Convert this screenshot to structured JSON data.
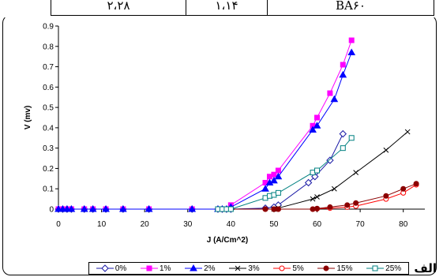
{
  "table_row": {
    "cells": [
      "۲،۲۸",
      "۱،۱۴",
      "BA۶۰"
    ]
  },
  "corner_label": "الف",
  "chart_data": {
    "type": "line",
    "title": "",
    "xlabel": "J (A/Cm^2)",
    "ylabel": "V (mv)",
    "xlim": [
      0,
      85
    ],
    "ylim": [
      0,
      0.9
    ],
    "x_ticks": [
      0,
      10,
      20,
      30,
      40,
      50,
      60,
      70,
      80
    ],
    "y_ticks": [
      0,
      0.1,
      0.2,
      0.3,
      0.4,
      0.5,
      0.6,
      0.7,
      0.8,
      0.9
    ],
    "y_tick_labels": [
      "0",
      "0.1",
      "0.2",
      "0.3",
      "0.4",
      "0.5",
      "0.6",
      "0.7",
      "0.8",
      "0.9"
    ],
    "grid": false,
    "legend_position": "bottom",
    "series": [
      {
        "name": "0%",
        "color": "#1a1aa6",
        "marker": "diamond-open",
        "x": [
          0,
          1,
          2,
          3,
          6,
          8,
          11,
          15,
          21,
          31,
          37,
          38,
          39,
          40,
          48,
          50,
          51,
          58,
          59.5,
          63,
          66
        ],
        "y": [
          0,
          0,
          0,
          0,
          0,
          0,
          0,
          0,
          0,
          0,
          0,
          0,
          0,
          0,
          0.005,
          0.01,
          0.02,
          0.13,
          0.16,
          0.24,
          0.37
        ]
      },
      {
        "name": "1%",
        "color": "#ff00ff",
        "marker": "square-filled",
        "x": [
          0,
          1,
          2,
          3,
          6,
          8,
          11,
          15,
          21,
          31,
          37,
          38,
          39,
          40,
          48,
          49,
          50,
          51,
          59,
          60,
          63,
          66,
          68
        ],
        "y": [
          0,
          0,
          0,
          0,
          0,
          0,
          0,
          0,
          0,
          0,
          0,
          0,
          0,
          0.02,
          0.13,
          0.16,
          0.17,
          0.19,
          0.41,
          0.45,
          0.57,
          0.71,
          0.83
        ]
      },
      {
        "name": "2%",
        "color": "#0000ff",
        "marker": "triangle-filled",
        "x": [
          0,
          1,
          2,
          3,
          6,
          8,
          11,
          15,
          21,
          31,
          37,
          38,
          39,
          40,
          48,
          49,
          50,
          51,
          59,
          60,
          64,
          66,
          68
        ],
        "y": [
          0,
          0,
          0,
          0,
          0,
          0,
          0,
          0,
          0,
          0,
          0,
          0,
          0,
          0.01,
          0.1,
          0.13,
          0.14,
          0.16,
          0.39,
          0.41,
          0.54,
          0.66,
          0.77
        ]
      },
      {
        "name": "3%",
        "color": "#000000",
        "marker": "x",
        "x": [
          37,
          38,
          39,
          40,
          50,
          51,
          59,
          60,
          64,
          69,
          76,
          81
        ],
        "y": [
          0,
          0,
          0,
          0,
          0,
          0.005,
          0.05,
          0.06,
          0.1,
          0.18,
          0.29,
          0.38
        ]
      },
      {
        "name": "5%",
        "color": "#ff0000",
        "marker": "circle-open",
        "x": [
          37,
          38,
          40,
          48,
          50,
          51,
          59,
          60,
          63,
          67,
          69,
          76,
          80,
          83
        ],
        "y": [
          0,
          0,
          0,
          0,
          0,
          0,
          0,
          0.002,
          0.005,
          0.01,
          0.015,
          0.05,
          0.08,
          0.12
        ]
      },
      {
        "name": "15%",
        "color": "#8b0000",
        "marker": "circle-filled",
        "x": [
          37,
          38,
          40,
          48,
          50,
          51,
          59,
          60,
          63,
          67,
          69,
          76,
          80,
          83
        ],
        "y": [
          0,
          0,
          0,
          0,
          0,
          0,
          0,
          0.003,
          0.01,
          0.02,
          0.03,
          0.065,
          0.1,
          0.125
        ]
      },
      {
        "name": "25%",
        "color": "#008080",
        "marker": "square-open",
        "x": [
          37,
          38,
          39,
          40,
          48,
          49,
          50,
          51,
          59,
          60,
          66,
          68
        ],
        "y": [
          0,
          0,
          0,
          0,
          0.055,
          0.065,
          0.07,
          0.08,
          0.18,
          0.19,
          0.3,
          0.35
        ]
      }
    ]
  }
}
